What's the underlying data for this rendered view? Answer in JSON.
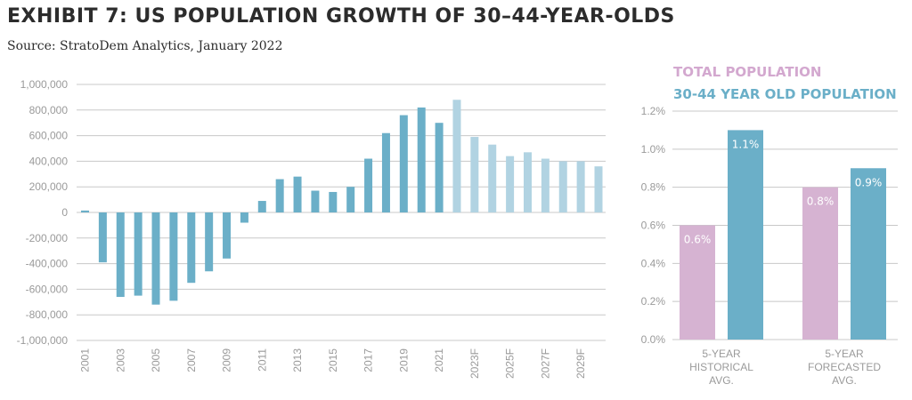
{
  "title": "EXHIBIT 7: US POPULATION GROWTH OF 30–44-YEAR-OLDS",
  "source": "Source: StratoDem Analytics, January 2022",
  "legend": {
    "total": "TOTAL POPULATION",
    "age_30_44": "30-44 YEAR OLD POPULATION"
  },
  "colors": {
    "historical": "#6bafc8",
    "forecast": "#b1d3e2",
    "total": "#d6b3d2",
    "age_30_44": "#6bafc8",
    "legend_total": "#d3a8cf",
    "legend_3044": "#6bafc8"
  },
  "chart_data": [
    {
      "type": "bar",
      "title": "",
      "xlabel": "",
      "ylabel": "",
      "ylim": [
        -1000000,
        1000000
      ],
      "yticks": [
        1000000,
        800000,
        600000,
        400000,
        200000,
        0,
        -200000,
        -400000,
        -600000,
        -800000,
        -1000000
      ],
      "ytick_labels": [
        "1,000,000",
        "800,000",
        "600,000",
        "400,000",
        "200,000",
        "0",
        "-200,000",
        "-400,000",
        "-600,000",
        "-800,000",
        "-1,000,000"
      ],
      "categories": [
        "2001",
        "2002",
        "2003",
        "2004",
        "2005",
        "2006",
        "2007",
        "2008",
        "2009",
        "2010",
        "2011",
        "2012",
        "2013",
        "2014",
        "2015",
        "2016",
        "2017",
        "2018",
        "2019",
        "2020",
        "2021",
        "2022F",
        "2023F",
        "2024F",
        "2025F",
        "2026F",
        "2027F",
        "2028F",
        "2029F",
        "2030F"
      ],
      "xtick_labels": [
        "2001",
        "",
        "2003",
        "",
        "2005",
        "",
        "2007",
        "",
        "2009",
        "",
        "2011",
        "",
        "2013",
        "",
        "2015",
        "",
        "2017",
        "",
        "2019",
        "",
        "2021",
        "",
        "2023F",
        "",
        "2025F",
        "",
        "2027F",
        "",
        "2029F",
        ""
      ],
      "values": [
        15000,
        -390000,
        -660000,
        -650000,
        -720000,
        -690000,
        -550000,
        -460000,
        -360000,
        -80000,
        90000,
        260000,
        280000,
        170000,
        160000,
        200000,
        420000,
        620000,
        760000,
        820000,
        700000,
        880000,
        590000,
        530000,
        440000,
        470000,
        420000,
        400000,
        400000,
        360000
      ],
      "forecast": [
        false,
        false,
        false,
        false,
        false,
        false,
        false,
        false,
        false,
        false,
        false,
        false,
        false,
        false,
        false,
        false,
        false,
        false,
        false,
        false,
        false,
        true,
        true,
        true,
        true,
        true,
        true,
        true,
        true,
        true
      ],
      "grid": true
    },
    {
      "type": "bar",
      "title": "",
      "xlabel": "",
      "ylabel": "",
      "ylim": [
        0,
        1.2
      ],
      "yticks": [
        1.2,
        1.0,
        0.8,
        0.6,
        0.4,
        0.2,
        0.0
      ],
      "ytick_labels": [
        "1.2%",
        "1.0%",
        "0.8%",
        "0.6%",
        "0.4%",
        "0.2%",
        "0.0%"
      ],
      "categories": [
        [
          "5-YEAR",
          "HISTORICAL",
          "AVG."
        ],
        [
          "5-YEAR",
          "FORECASTED",
          "AVG."
        ]
      ],
      "series": [
        {
          "name": "TOTAL POPULATION",
          "values": [
            0.6,
            0.8
          ],
          "labels": [
            "0.6%",
            "0.8%"
          ]
        },
        {
          "name": "30-44 YEAR OLD POPULATION",
          "values": [
            1.1,
            0.9
          ],
          "labels": [
            "1.1%",
            "0.9%"
          ]
        }
      ],
      "legend_position": "top",
      "grid": true
    }
  ]
}
